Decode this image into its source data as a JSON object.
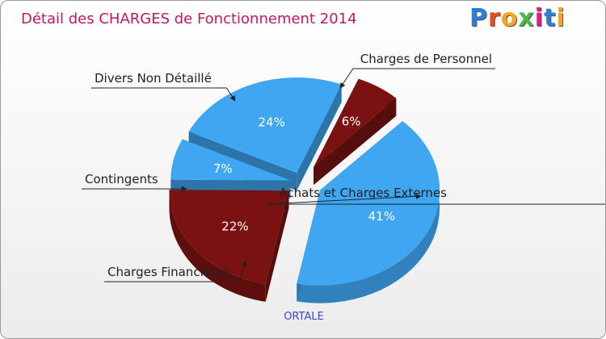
{
  "chart_data": {
    "type": "pie",
    "title": "Détail des CHARGES de Fonctionnement 2014",
    "footer": "ORTALE",
    "brand": "Proxiti",
    "slices": [
      {
        "label": "Charges de Personnel",
        "value": 6,
        "pct_label": "6%",
        "color": "#7a1212"
      },
      {
        "label": "Achats et Charges Externes",
        "value": 41,
        "pct_label": "41%",
        "color": "#3fa6f2"
      },
      {
        "label": "Charges Financières",
        "value": 22,
        "pct_label": "22%",
        "color": "#7a1212"
      },
      {
        "label": "Contingents",
        "value": 7,
        "pct_label": "7%",
        "color": "#3fa6f2"
      },
      {
        "label": "Divers Non Détaillé",
        "value": 24,
        "pct_label": "24%",
        "color": "#3fa6f2"
      }
    ]
  },
  "colors": {
    "title": "#c2185b",
    "footer": "#4444cc",
    "brand_letters": [
      "#2b7fd6",
      "#e94e1b",
      "#f5a623",
      "#49b947",
      "#e01b84",
      "#2b7fd6",
      "#f5a623"
    ]
  }
}
